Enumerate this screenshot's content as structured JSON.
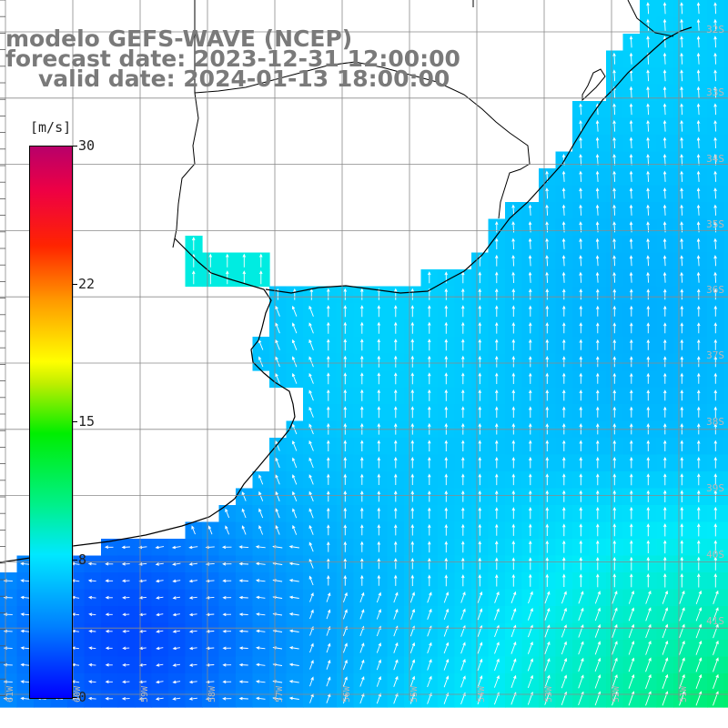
{
  "title": {
    "line1": "modelo GEFS-WAVE (NCEP)",
    "line2": "forecast date: 2023-12-31 12:00:00",
    "line3": "valid date: 2024-01-13 18:00:00"
  },
  "colorbar": {
    "unit": "[m/s]",
    "ticks": [
      "30",
      "22",
      "15",
      "8",
      "0"
    ],
    "tick_values": [
      30,
      22,
      15,
      8,
      0
    ],
    "min": 0,
    "max": 30,
    "colors": [
      "#0000ff",
      "#0080ff",
      "#00e8ff",
      "#00f08a",
      "#00ee00",
      "#ffff00",
      "#ff9a00",
      "#ff2400",
      "#b8006a"
    ]
  },
  "lat_labels": [
    "32S",
    "33S",
    "34S",
    "35S",
    "36S",
    "37S",
    "38S",
    "39S",
    "40S",
    "41S"
  ],
  "lon_labels": [
    "61W",
    "60W",
    "59W",
    "58W",
    "57W",
    "56W",
    "55W",
    "54W",
    "53W",
    "52W",
    "51W"
  ],
  "field": {
    "description_units": "m/s",
    "ocean_color_low": "#1a7fff",
    "ocean_color_mid": "#00d8ff",
    "ocean_color_high": "#00f07a",
    "land_color": "#ffffff",
    "coast_color": "#000000",
    "grid_color": "#8a8a8a",
    "arrow_color": "#ffffff"
  }
}
